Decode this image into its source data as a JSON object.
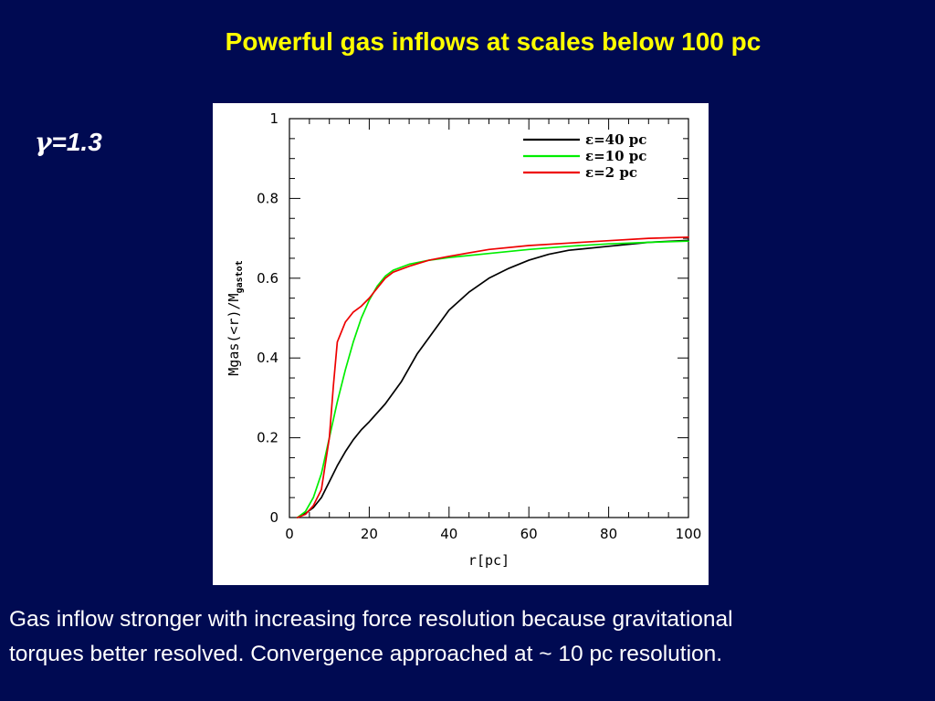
{
  "slide": {
    "title": "Powerful gas inflows at scales below 100 pc",
    "gamma_symbol": "γ",
    "gamma_value": "=1.3",
    "caption_line1": "Gas inflow stronger with increasing force resolution because gravitational",
    "caption_line2": "torques better resolved. Convergence approached at ~ 10 pc resolution."
  },
  "colors": {
    "background": "#000a52",
    "title": "#ffff00",
    "text": "#ffffff"
  },
  "chart_data": {
    "type": "line",
    "title": "",
    "xlabel": "r[pc]",
    "ylabel_main": "Mgas(<r)/M",
    "ylabel_sub": "gastot",
    "xlim": [
      0,
      100
    ],
    "ylim": [
      0,
      1
    ],
    "xticks": [
      0,
      20,
      40,
      60,
      80,
      100
    ],
    "yticks": [
      0,
      0.2,
      0.4,
      0.6,
      0.8,
      1
    ],
    "ytick_labels": [
      "0",
      "0.2",
      "0.4",
      "0.6",
      "0.8",
      "1"
    ],
    "grid": false,
    "legend_position": "top-right",
    "series": [
      {
        "name": "ε=40 pc",
        "color": "#000000",
        "x": [
          2,
          4,
          6,
          8,
          10,
          12,
          14,
          16,
          18,
          20,
          24,
          28,
          32,
          36,
          40,
          45,
          50,
          55,
          60,
          65,
          70,
          80,
          90,
          100
        ],
        "y": [
          0,
          0.01,
          0.025,
          0.05,
          0.09,
          0.13,
          0.165,
          0.195,
          0.22,
          0.24,
          0.285,
          0.34,
          0.41,
          0.465,
          0.52,
          0.565,
          0.6,
          0.625,
          0.645,
          0.66,
          0.67,
          0.68,
          0.69,
          0.695
        ]
      },
      {
        "name": "ε=10 pc",
        "color": "#00ee00",
        "x": [
          2,
          4,
          6,
          8,
          10,
          12,
          14,
          16,
          18,
          20,
          22,
          24,
          26,
          30,
          35,
          40,
          50,
          60,
          70,
          80,
          90,
          100
        ],
        "y": [
          0,
          0.015,
          0.05,
          0.11,
          0.2,
          0.29,
          0.37,
          0.44,
          0.5,
          0.545,
          0.58,
          0.605,
          0.62,
          0.635,
          0.645,
          0.652,
          0.662,
          0.672,
          0.68,
          0.686,
          0.69,
          0.693
        ]
      },
      {
        "name": "ε=2 pc",
        "color": "#ee0000",
        "x": [
          2,
          4,
          6,
          8,
          10,
          11,
          12,
          14,
          16,
          18,
          20,
          22,
          24,
          26,
          30,
          35,
          40,
          50,
          60,
          70,
          80,
          90,
          100
        ],
        "y": [
          0,
          0.008,
          0.03,
          0.07,
          0.2,
          0.33,
          0.44,
          0.49,
          0.515,
          0.53,
          0.55,
          0.575,
          0.6,
          0.615,
          0.63,
          0.645,
          0.655,
          0.672,
          0.682,
          0.688,
          0.694,
          0.7,
          0.703
        ]
      }
    ]
  }
}
